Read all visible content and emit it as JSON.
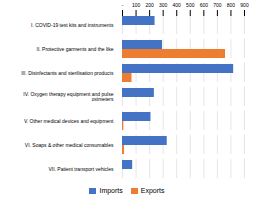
{
  "chart_data": {
    "type": "bar",
    "orientation": "horizontal",
    "categories": [
      "I. COVID-19 test kits and instruments",
      "II. Protective garments and the like",
      "III. Disinfectants and sterilisation products",
      "IV. Oxygen therapy equipment and pulse\noximeters",
      "V. Other medical devices and equipment",
      "VI. Soaps & other medical consumables",
      "VII. Patient transport vehicles"
    ],
    "series": [
      {
        "name": "Imports",
        "color": "#4472C4",
        "values": [
          240,
          295,
          820,
          235,
          210,
          330,
          75
        ]
      },
      {
        "name": "Exports",
        "color": "#ED7D31",
        "values": [
          0,
          760,
          70,
          0,
          10,
          15,
          0
        ]
      }
    ],
    "xlim": [
      0,
      900
    ],
    "xticks": [
      {
        "value": 0,
        "label": "-"
      },
      100,
      200,
      300,
      400,
      500,
      600,
      700,
      800,
      900
    ],
    "grid": true,
    "legend": "bottom"
  }
}
